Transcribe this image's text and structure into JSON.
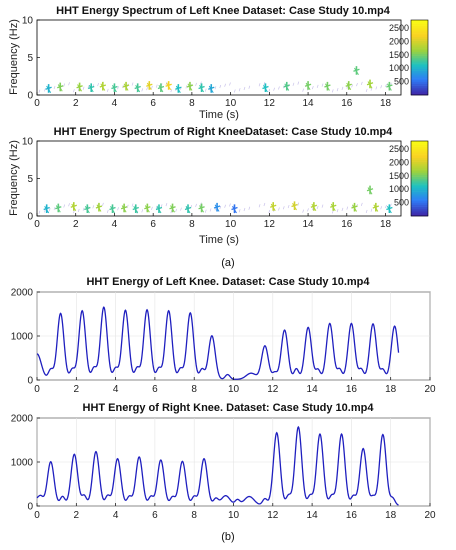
{
  "chart_data": [
    {
      "type": "heatmap",
      "title": "HHT Energy Spectrum of Left Knee Dataset: Case Study 10.mp4",
      "xlabel": "Time (s)",
      "ylabel": "Frequency (Hz)",
      "xlim": [
        0,
        18.8
      ],
      "ylim": [
        0,
        10
      ],
      "xticks": [
        "0",
        "2",
        "4",
        "6",
        "8",
        "10",
        "12",
        "14",
        "16",
        "18"
      ],
      "yticks": [
        "0",
        "5",
        "10"
      ],
      "colorbar": {
        "ticks": [
          "500",
          "1000",
          "1500",
          "2000",
          "2500"
        ],
        "range": [
          0,
          2800
        ],
        "colors": [
          "#3e26a8",
          "#2e7cf6",
          "#1ec2c0",
          "#9fd33b",
          "#f9d222",
          "#f9fb15"
        ]
      },
      "bursts": [
        {
          "t": 0.6,
          "f": 0.9,
          "e": 1000
        },
        {
          "t": 1.2,
          "f": 1.1,
          "e": 1550
        },
        {
          "t": 2.2,
          "f": 1.1,
          "e": 1650
        },
        {
          "t": 2.8,
          "f": 1.0,
          "e": 1200
        },
        {
          "t": 3.4,
          "f": 1.2,
          "e": 1800
        },
        {
          "t": 4.0,
          "f": 1.0,
          "e": 1300
        },
        {
          "t": 4.6,
          "f": 1.2,
          "e": 1750
        },
        {
          "t": 5.2,
          "f": 1.0,
          "e": 1300
        },
        {
          "t": 5.8,
          "f": 1.3,
          "e": 2100
        },
        {
          "t": 6.4,
          "f": 1.0,
          "e": 1400
        },
        {
          "t": 6.8,
          "f": 1.3,
          "e": 2200
        },
        {
          "t": 7.3,
          "f": 0.9,
          "e": 1100
        },
        {
          "t": 7.9,
          "f": 1.2,
          "e": 1600
        },
        {
          "t": 8.5,
          "f": 1.0,
          "e": 1200
        },
        {
          "t": 9.0,
          "f": 0.9,
          "e": 900
        },
        {
          "t": 11.8,
          "f": 1.0,
          "e": 1100
        },
        {
          "t": 12.9,
          "f": 1.2,
          "e": 1350
        },
        {
          "t": 14.0,
          "f": 1.3,
          "e": 1500
        },
        {
          "t": 15.0,
          "f": 1.2,
          "e": 1500
        },
        {
          "t": 16.1,
          "f": 1.3,
          "e": 1600
        },
        {
          "t": 16.5,
          "f": 3.3,
          "e": 1400
        },
        {
          "t": 17.2,
          "f": 1.5,
          "e": 1700
        },
        {
          "t": 18.2,
          "f": 1.2,
          "e": 1450
        }
      ]
    },
    {
      "type": "heatmap",
      "title": "HHT Energy Spectrum of Right KneeDataset: Case Study 10.mp4",
      "xlabel": "Time (s)",
      "ylabel": "Frequency (Hz)",
      "xlim": [
        0,
        18.8
      ],
      "ylim": [
        0,
        10
      ],
      "xticks": [
        "0",
        "2",
        "4",
        "6",
        "8",
        "10",
        "12",
        "14",
        "16",
        "18"
      ],
      "yticks": [
        "0",
        "5",
        "10"
      ],
      "colorbar": {
        "ticks": [
          "500",
          "1000",
          "1500",
          "2000",
          "2500"
        ],
        "range": [
          0,
          2800
        ],
        "colors": [
          "#3e26a8",
          "#2e7cf6",
          "#1ec2c0",
          "#9fd33b",
          "#f9d222",
          "#f9fb15"
        ]
      },
      "bursts": [
        {
          "t": 0.5,
          "f": 1.0,
          "e": 1000
        },
        {
          "t": 1.1,
          "f": 1.1,
          "e": 1400
        },
        {
          "t": 1.9,
          "f": 1.3,
          "e": 1800
        },
        {
          "t": 2.6,
          "f": 1.0,
          "e": 1300
        },
        {
          "t": 3.2,
          "f": 1.2,
          "e": 1700
        },
        {
          "t": 3.9,
          "f": 1.0,
          "e": 1300
        },
        {
          "t": 4.5,
          "f": 1.1,
          "e": 1600
        },
        {
          "t": 5.1,
          "f": 1.0,
          "e": 1250
        },
        {
          "t": 5.7,
          "f": 1.1,
          "e": 1600
        },
        {
          "t": 6.3,
          "f": 1.0,
          "e": 1200
        },
        {
          "t": 7.0,
          "f": 1.1,
          "e": 1550
        },
        {
          "t": 7.8,
          "f": 1.0,
          "e": 1200
        },
        {
          "t": 8.5,
          "f": 1.1,
          "e": 1500
        },
        {
          "t": 9.3,
          "f": 1.2,
          "e": 700
        },
        {
          "t": 10.2,
          "f": 1.0,
          "e": 500
        },
        {
          "t": 12.2,
          "f": 1.3,
          "e": 1900
        },
        {
          "t": 13.3,
          "f": 1.4,
          "e": 2000
        },
        {
          "t": 14.3,
          "f": 1.3,
          "e": 1800
        },
        {
          "t": 15.3,
          "f": 1.3,
          "e": 1750
        },
        {
          "t": 16.4,
          "f": 1.2,
          "e": 1650
        },
        {
          "t": 17.2,
          "f": 3.5,
          "e": 1500
        },
        {
          "t": 17.5,
          "f": 1.2,
          "e": 1800
        },
        {
          "t": 18.2,
          "f": 1.0,
          "e": 1100
        }
      ]
    },
    {
      "type": "line",
      "title": "HHT Energy of Left Knee. Dataset: Case Study 10.mp4",
      "xlim": [
        0,
        20
      ],
      "ylim": [
        0,
        2000
      ],
      "xticks": [
        "0",
        "2",
        "4",
        "6",
        "8",
        "10",
        "12",
        "14",
        "16",
        "18",
        "20"
      ],
      "yticks": [
        "0",
        "1000",
        "2000"
      ],
      "color": "#1f1fbf",
      "start": [
        0,
        580
      ],
      "end": 18.4,
      "peaks": [
        {
          "t": 1.2,
          "v": 1500,
          "s": 0.17
        },
        {
          "t": 2.3,
          "v": 1560,
          "s": 0.17
        },
        {
          "t": 3.4,
          "v": 1640,
          "s": 0.17
        },
        {
          "t": 4.5,
          "v": 1570,
          "s": 0.17
        },
        {
          "t": 5.6,
          "v": 1580,
          "s": 0.17
        },
        {
          "t": 6.7,
          "v": 1560,
          "s": 0.17
        },
        {
          "t": 7.8,
          "v": 1510,
          "s": 0.17
        },
        {
          "t": 8.9,
          "v": 990,
          "s": 0.17
        },
        {
          "t": 10.9,
          "v": 140,
          "s": 0.25
        },
        {
          "t": 11.6,
          "v": 760,
          "s": 0.17
        },
        {
          "t": 12.6,
          "v": 1120,
          "s": 0.17
        },
        {
          "t": 13.8,
          "v": 1180,
          "s": 0.17
        },
        {
          "t": 14.9,
          "v": 1270,
          "s": 0.17
        },
        {
          "t": 16.0,
          "v": 1270,
          "s": 0.17
        },
        {
          "t": 17.1,
          "v": 1260,
          "s": 0.17
        },
        {
          "t": 18.2,
          "v": 1210,
          "s": 0.17
        }
      ],
      "secondary": [
        {
          "t": 0.7,
          "v": 220
        },
        {
          "t": 1.8,
          "v": 230
        },
        {
          "t": 2.9,
          "v": 260
        },
        {
          "t": 4.0,
          "v": 250
        },
        {
          "t": 5.1,
          "v": 260
        },
        {
          "t": 6.2,
          "v": 250
        },
        {
          "t": 7.3,
          "v": 240
        },
        {
          "t": 8.4,
          "v": 230
        },
        {
          "t": 9.7,
          "v": 110
        },
        {
          "t": 12.1,
          "v": 150
        },
        {
          "t": 13.2,
          "v": 240
        },
        {
          "t": 14.3,
          "v": 220
        },
        {
          "t": 15.4,
          "v": 230
        },
        {
          "t": 16.5,
          "v": 230
        },
        {
          "t": 17.6,
          "v": 220
        }
      ]
    },
    {
      "type": "line",
      "title": "HHT Energy of Right Knee. Dataset: Case Study 10.mp4",
      "xlim": [
        0,
        20
      ],
      "ylim": [
        0,
        2000
      ],
      "xticks": [
        "0",
        "2",
        "4",
        "6",
        "8",
        "10",
        "12",
        "14",
        "16",
        "18",
        "20"
      ],
      "yticks": [
        "0",
        "1000",
        "2000"
      ],
      "color": "#1f1fbf",
      "start": [
        0,
        140
      ],
      "end": 18.4,
      "peaks": [
        {
          "t": 0.7,
          "v": 990,
          "s": 0.17
        },
        {
          "t": 1.9,
          "v": 1160,
          "s": 0.17
        },
        {
          "t": 3.0,
          "v": 1220,
          "s": 0.17
        },
        {
          "t": 4.1,
          "v": 1060,
          "s": 0.17
        },
        {
          "t": 5.2,
          "v": 1100,
          "s": 0.17
        },
        {
          "t": 6.3,
          "v": 1030,
          "s": 0.17
        },
        {
          "t": 7.4,
          "v": 1000,
          "s": 0.17
        },
        {
          "t": 8.5,
          "v": 1060,
          "s": 0.17
        },
        {
          "t": 9.6,
          "v": 220,
          "s": 0.22
        },
        {
          "t": 10.8,
          "v": 200,
          "s": 0.25
        },
        {
          "t": 12.2,
          "v": 1650,
          "s": 0.17
        },
        {
          "t": 13.3,
          "v": 1780,
          "s": 0.17
        },
        {
          "t": 14.4,
          "v": 1620,
          "s": 0.17
        },
        {
          "t": 15.5,
          "v": 1620,
          "s": 0.17
        },
        {
          "t": 16.6,
          "v": 1290,
          "s": 0.17
        },
        {
          "t": 17.6,
          "v": 1610,
          "s": 0.17
        }
      ],
      "secondary": [
        {
          "t": 0.2,
          "v": 120
        },
        {
          "t": 1.3,
          "v": 200
        },
        {
          "t": 2.4,
          "v": 220
        },
        {
          "t": 3.6,
          "v": 220
        },
        {
          "t": 4.7,
          "v": 200
        },
        {
          "t": 5.8,
          "v": 200
        },
        {
          "t": 6.9,
          "v": 190
        },
        {
          "t": 8.0,
          "v": 200
        },
        {
          "t": 9.1,
          "v": 150
        },
        {
          "t": 10.2,
          "v": 120
        },
        {
          "t": 11.6,
          "v": 150
        },
        {
          "t": 12.8,
          "v": 220
        },
        {
          "t": 13.9,
          "v": 220
        },
        {
          "t": 15.0,
          "v": 220
        },
        {
          "t": 16.1,
          "v": 210
        },
        {
          "t": 17.1,
          "v": 190
        },
        {
          "t": 18.1,
          "v": 160
        }
      ]
    }
  ],
  "panel_labels": {
    "a": "(a)",
    "b": "(b)"
  }
}
